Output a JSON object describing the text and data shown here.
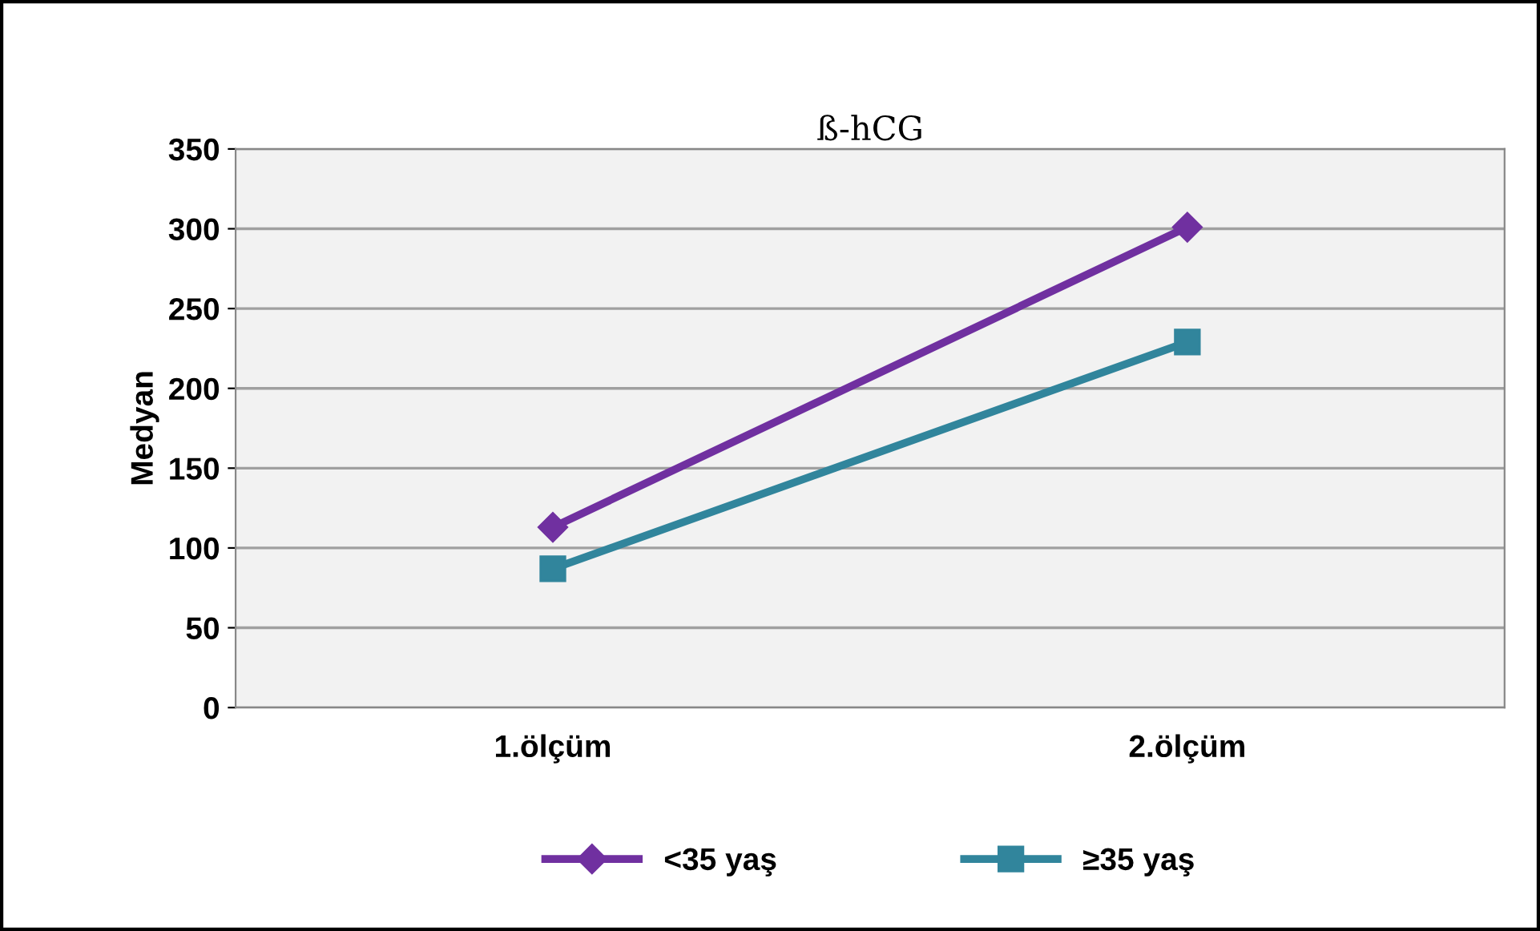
{
  "chart_data": {
    "type": "line",
    "title": "ß-hCG",
    "ylabel": "Medyan",
    "categories": [
      "1.ölçüm",
      "2.ölçüm"
    ],
    "series": [
      {
        "name": "<35 yaş",
        "color": "#7030a0",
        "marker": "diamond",
        "values": [
          113,
          301
        ]
      },
      {
        "name": "≥35 yaş",
        "color": "#31859c",
        "marker": "square",
        "values": [
          87,
          229
        ]
      }
    ],
    "ylim": [
      0,
      350
    ],
    "yticks": [
      0,
      50,
      100,
      150,
      200,
      250,
      300,
      350
    ],
    "grid": "y",
    "legend": "bottom",
    "line_style": "solid"
  }
}
